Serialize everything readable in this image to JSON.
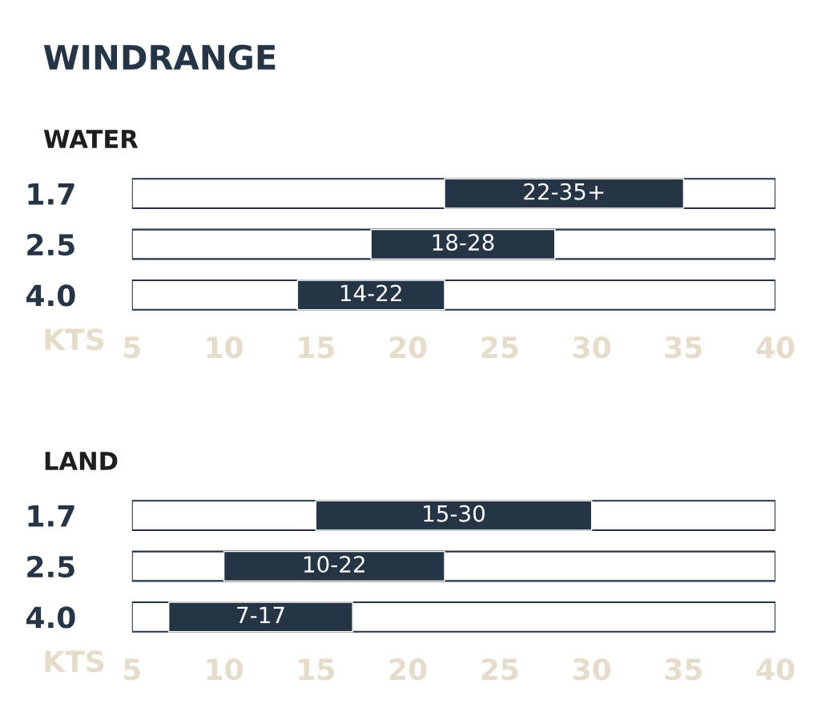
{
  "chart_data": [
    {
      "type": "bar",
      "orientation": "horizontal",
      "title": "WINDRANGE",
      "subtitle": "WATER",
      "xlabel": "KTS",
      "categories": [
        "1.7",
        "2.5",
        "4.0"
      ],
      "base": [
        22,
        18,
        14
      ],
      "values": [
        13,
        10,
        8
      ],
      "value_labels": [
        "22-35+",
        "18-28",
        "14-22"
      ],
      "color": "#253545",
      "xlim": [
        5,
        40
      ],
      "xticks": [
        5,
        10,
        15,
        20,
        25,
        30,
        35,
        40
      ]
    },
    {
      "type": "bar",
      "orientation": "horizontal",
      "subtitle": "LAND",
      "xlabel": "KTS",
      "categories": [
        "1.7",
        "2.5",
        "4.0"
      ],
      "base": [
        15,
        10,
        7
      ],
      "values": [
        15,
        12,
        10
      ],
      "value_labels": [
        "15-30",
        "10-22",
        "7-17"
      ],
      "color": "#253545",
      "xlim": [
        5,
        40
      ],
      "xticks": [
        5,
        10,
        15,
        20,
        25,
        30,
        35,
        40
      ]
    }
  ]
}
